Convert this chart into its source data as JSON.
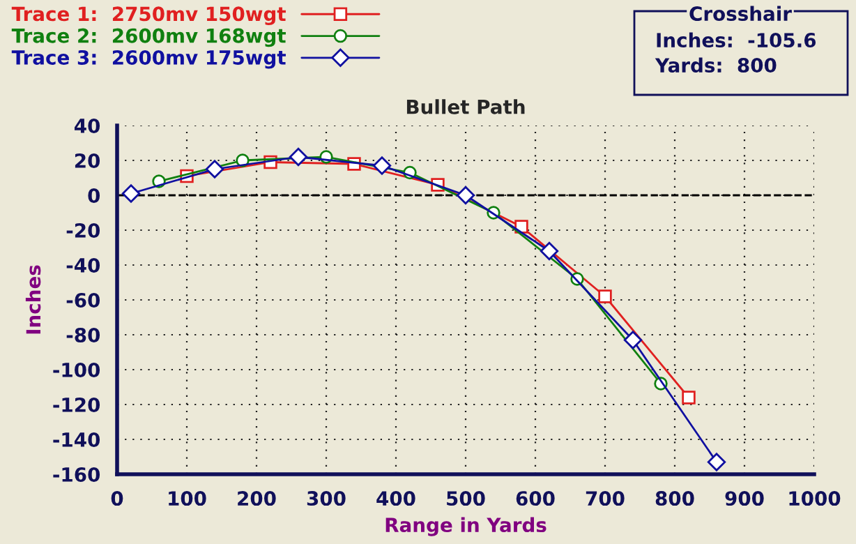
{
  "chart_data": {
    "type": "line",
    "title": "Bullet Path",
    "xlabel": "Range in Yards",
    "ylabel": "Inches",
    "series": [
      {
        "name": "Trace 1:  2750mv 150wgt",
        "color": "#e02020",
        "marker": "square",
        "x": [
          100,
          220,
          340,
          460,
          580,
          700,
          820
        ],
        "values": [
          11,
          19,
          18,
          6,
          -18,
          -58,
          -116
        ]
      },
      {
        "name": "Trace 2:  2600mv 168wgt",
        "color": "#108010",
        "marker": "circle",
        "x": [
          60,
          180,
          300,
          420,
          540,
          660,
          780
        ],
        "values": [
          8,
          20,
          22,
          13,
          -10,
          -48,
          -108
        ]
      },
      {
        "name": "Trace 3:  2600mv 175wgt",
        "color": "#1010a0",
        "marker": "diamond",
        "x": [
          20,
          140,
          260,
          380,
          500,
          620,
          740,
          860
        ],
        "values": [
          1,
          15,
          22,
          17,
          0,
          -32,
          -83,
          -153
        ]
      }
    ],
    "xlim": [
      0,
      1000
    ],
    "xticks": [
      0,
      100,
      200,
      300,
      400,
      500,
      600,
      700,
      800,
      900,
      1000
    ],
    "ylim": [
      -160,
      40
    ],
    "yticks": [
      -160,
      -140,
      -120,
      -100,
      -80,
      -60,
      -40,
      -20,
      0,
      20,
      40
    ],
    "ref_lines": [
      {
        "axis": "y",
        "value": 0,
        "color": "#000000",
        "line_style": "dashed"
      }
    ],
    "annotations": [
      "Crosshair",
      "Inches:  -105.6",
      "Yards:  800"
    ],
    "grid": true,
    "legend": "top left",
    "line_style": "solid"
  }
}
